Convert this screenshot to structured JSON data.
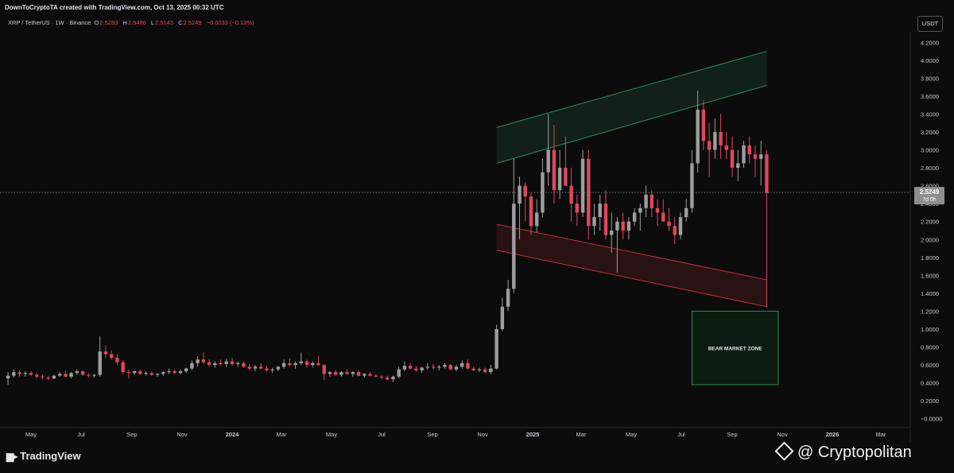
{
  "header": {
    "credit": "DownToCryptoTA created with TradingView.com, Oct 13, 2025 00:32 UTC"
  },
  "symbol": {
    "name": "XRP / TetherUS · 1W · Binance",
    "o_label": "O",
    "o": "2.5283",
    "h_label": "H",
    "h": "2.5486",
    "l_label": "L",
    "l": "2.5143",
    "c_label": "C",
    "c": "2.5249",
    "change": "−0.0033 (−0.13%)"
  },
  "currency_button": "USDT",
  "price_tag": {
    "price": "2.5249",
    "countdown": "7d 0h"
  },
  "annotation": {
    "bear_zone": "BEAR MARKET ZONE"
  },
  "footer": {
    "logo_text": "TradingView",
    "watermark": "@ Cryptopolitan"
  },
  "colors": {
    "up": "#9e9e9e",
    "down": "#e0475b",
    "green_channel": "#2e8b57",
    "red_channel": "#c0303c",
    "bg": "#0c0c0c"
  },
  "chart_data": {
    "type": "candlestick",
    "title": "",
    "ylim": [
      -0.1,
      4.3
    ],
    "y_ticks": [
      "4.2000",
      "4.0000",
      "3.8000",
      "3.6000",
      "3.4000",
      "3.2000",
      "3.0000",
      "2.8000",
      "2.6000",
      "2.4000",
      "2.2000",
      "2.0000",
      "1.8000",
      "1.6000",
      "1.4000",
      "1.2000",
      "1.0000",
      "0.8000",
      "0.6000",
      "0.4000",
      "0.2000",
      "−0.0000"
    ],
    "x_ticks": [
      "May",
      "Jul",
      "Sep",
      "Nov",
      "2024",
      "Mar",
      "May",
      "Jul",
      "Sep",
      "Nov",
      "2025",
      "Mar",
      "May",
      "Jul",
      "Sep",
      "Nov",
      "2026",
      "Mar"
    ],
    "x_range": [
      "2023-04-01",
      "2026-04-01"
    ],
    "x_tick_dates": [
      "2023-05-01",
      "2023-07-01",
      "2023-09-01",
      "2023-11-01",
      "2024-01-01",
      "2024-03-01",
      "2024-05-01",
      "2024-07-01",
      "2024-09-01",
      "2024-11-01",
      "2025-01-01",
      "2025-03-01",
      "2025-05-01",
      "2025-07-01",
      "2025-09-01",
      "2025-11-01",
      "2026-01-01",
      "2026-03-01"
    ],
    "first_candle_date": "2023-04-03",
    "candles": [
      [
        0.45,
        0.52,
        0.38,
        0.48
      ],
      [
        0.48,
        0.55,
        0.46,
        0.52
      ],
      [
        0.52,
        0.54,
        0.47,
        0.5
      ],
      [
        0.5,
        0.53,
        0.47,
        0.51
      ],
      [
        0.51,
        0.53,
        0.48,
        0.49
      ],
      [
        0.49,
        0.51,
        0.45,
        0.47
      ],
      [
        0.47,
        0.49,
        0.44,
        0.46
      ],
      [
        0.46,
        0.48,
        0.43,
        0.45
      ],
      [
        0.45,
        0.49,
        0.44,
        0.48
      ],
      [
        0.48,
        0.52,
        0.47,
        0.5
      ],
      [
        0.5,
        0.53,
        0.46,
        0.47
      ],
      [
        0.47,
        0.52,
        0.45,
        0.51
      ],
      [
        0.51,
        0.55,
        0.49,
        0.53
      ],
      [
        0.53,
        0.54,
        0.48,
        0.49
      ],
      [
        0.49,
        0.51,
        0.46,
        0.48
      ],
      [
        0.48,
        0.5,
        0.46,
        0.49
      ],
      [
        0.49,
        0.92,
        0.47,
        0.75
      ],
      [
        0.75,
        0.82,
        0.68,
        0.72
      ],
      [
        0.72,
        0.76,
        0.66,
        0.68
      ],
      [
        0.68,
        0.72,
        0.6,
        0.63
      ],
      [
        0.63,
        0.65,
        0.5,
        0.52
      ],
      [
        0.52,
        0.55,
        0.45,
        0.51
      ],
      [
        0.51,
        0.54,
        0.49,
        0.53
      ],
      [
        0.53,
        0.55,
        0.49,
        0.5
      ],
      [
        0.5,
        0.53,
        0.48,
        0.51
      ],
      [
        0.51,
        0.53,
        0.48,
        0.49
      ],
      [
        0.49,
        0.51,
        0.47,
        0.5
      ],
      [
        0.5,
        0.53,
        0.48,
        0.52
      ],
      [
        0.52,
        0.56,
        0.5,
        0.53
      ],
      [
        0.53,
        0.55,
        0.5,
        0.51
      ],
      [
        0.51,
        0.55,
        0.5,
        0.53
      ],
      [
        0.53,
        0.57,
        0.51,
        0.56
      ],
      [
        0.56,
        0.65,
        0.54,
        0.62
      ],
      [
        0.62,
        0.7,
        0.58,
        0.66
      ],
      [
        0.66,
        0.74,
        0.61,
        0.63
      ],
      [
        0.63,
        0.66,
        0.58,
        0.6
      ],
      [
        0.6,
        0.64,
        0.57,
        0.62
      ],
      [
        0.62,
        0.66,
        0.59,
        0.61
      ],
      [
        0.61,
        0.67,
        0.58,
        0.64
      ],
      [
        0.64,
        0.68,
        0.59,
        0.61
      ],
      [
        0.61,
        0.64,
        0.58,
        0.62
      ],
      [
        0.62,
        0.64,
        0.57,
        0.58
      ],
      [
        0.58,
        0.61,
        0.54,
        0.56
      ],
      [
        0.56,
        0.6,
        0.53,
        0.58
      ],
      [
        0.58,
        0.62,
        0.55,
        0.56
      ],
      [
        0.56,
        0.59,
        0.52,
        0.54
      ],
      [
        0.54,
        0.57,
        0.51,
        0.55
      ],
      [
        0.55,
        0.59,
        0.53,
        0.58
      ],
      [
        0.58,
        0.66,
        0.56,
        0.62
      ],
      [
        0.62,
        0.67,
        0.58,
        0.6
      ],
      [
        0.6,
        0.64,
        0.56,
        0.62
      ],
      [
        0.62,
        0.74,
        0.6,
        0.64
      ],
      [
        0.64,
        0.66,
        0.57,
        0.6
      ],
      [
        0.6,
        0.64,
        0.57,
        0.62
      ],
      [
        0.62,
        0.7,
        0.59,
        0.6
      ],
      [
        0.6,
        0.61,
        0.43,
        0.5
      ],
      [
        0.5,
        0.53,
        0.47,
        0.52
      ],
      [
        0.52,
        0.54,
        0.48,
        0.49
      ],
      [
        0.49,
        0.53,
        0.47,
        0.52
      ],
      [
        0.52,
        0.55,
        0.49,
        0.5
      ],
      [
        0.5,
        0.53,
        0.47,
        0.52
      ],
      [
        0.52,
        0.54,
        0.47,
        0.48
      ],
      [
        0.48,
        0.51,
        0.46,
        0.5
      ],
      [
        0.5,
        0.52,
        0.47,
        0.48
      ],
      [
        0.48,
        0.5,
        0.46,
        0.47
      ],
      [
        0.47,
        0.49,
        0.44,
        0.46
      ],
      [
        0.46,
        0.48,
        0.43,
        0.44
      ],
      [
        0.44,
        0.48,
        0.41,
        0.47
      ],
      [
        0.47,
        0.58,
        0.45,
        0.55
      ],
      [
        0.55,
        0.64,
        0.53,
        0.59
      ],
      [
        0.59,
        0.62,
        0.55,
        0.56
      ],
      [
        0.56,
        0.59,
        0.52,
        0.54
      ],
      [
        0.54,
        0.58,
        0.51,
        0.57
      ],
      [
        0.57,
        0.62,
        0.55,
        0.58
      ],
      [
        0.58,
        0.61,
        0.55,
        0.57
      ],
      [
        0.57,
        0.6,
        0.54,
        0.58
      ],
      [
        0.58,
        0.62,
        0.56,
        0.6
      ],
      [
        0.6,
        0.61,
        0.54,
        0.55
      ],
      [
        0.55,
        0.6,
        0.53,
        0.58
      ],
      [
        0.58,
        0.65,
        0.56,
        0.62
      ],
      [
        0.62,
        0.66,
        0.55,
        0.56
      ],
      [
        0.56,
        0.58,
        0.53,
        0.54
      ],
      [
        0.54,
        0.57,
        0.52,
        0.55
      ],
      [
        0.55,
        0.57,
        0.51,
        0.52
      ],
      [
        0.52,
        0.6,
        0.5,
        0.56
      ],
      [
        0.56,
        1.05,
        0.55,
        1.0
      ],
      [
        1.0,
        1.35,
        0.98,
        1.25
      ],
      [
        1.25,
        1.55,
        1.2,
        1.45
      ],
      [
        1.45,
        2.9,
        1.4,
        2.4
      ],
      [
        2.4,
        2.7,
        2.0,
        2.6
      ],
      [
        2.6,
        2.64,
        2.2,
        2.48
      ],
      [
        2.48,
        2.52,
        2.05,
        2.15
      ],
      [
        2.15,
        2.45,
        2.08,
        2.3
      ],
      [
        2.3,
        2.9,
        2.25,
        2.75
      ],
      [
        2.75,
        3.4,
        2.6,
        3.0
      ],
      [
        3.0,
        3.28,
        2.4,
        2.55
      ],
      [
        2.55,
        3.0,
        2.45,
        2.8
      ],
      [
        2.8,
        3.15,
        2.6,
        2.6
      ],
      [
        2.6,
        2.8,
        2.2,
        2.4
      ],
      [
        2.4,
        2.5,
        2.15,
        2.3
      ],
      [
        2.3,
        3.0,
        2.25,
        2.9
      ],
      [
        2.9,
        3.0,
        2.0,
        2.15
      ],
      [
        2.15,
        2.4,
        2.05,
        2.25
      ],
      [
        2.25,
        2.5,
        2.1,
        2.4
      ],
      [
        2.4,
        2.55,
        2.0,
        2.05
      ],
      [
        2.05,
        2.3,
        1.85,
        2.1
      ],
      [
        2.1,
        2.25,
        1.63,
        2.2
      ],
      [
        2.2,
        2.3,
        2.0,
        2.1
      ],
      [
        2.1,
        2.25,
        2.0,
        2.2
      ],
      [
        2.2,
        2.35,
        2.15,
        2.3
      ],
      [
        2.3,
        2.4,
        2.1,
        2.35
      ],
      [
        2.35,
        2.6,
        2.25,
        2.5
      ],
      [
        2.5,
        2.55,
        2.25,
        2.35
      ],
      [
        2.35,
        2.45,
        2.15,
        2.3
      ],
      [
        2.3,
        2.45,
        2.2,
        2.2
      ],
      [
        2.2,
        2.35,
        2.1,
        2.15
      ],
      [
        2.15,
        2.25,
        1.95,
        2.05
      ],
      [
        2.05,
        2.3,
        2.0,
        2.25
      ],
      [
        2.25,
        2.45,
        2.2,
        2.35
      ],
      [
        2.35,
        3.0,
        2.3,
        2.85
      ],
      [
        2.85,
        3.66,
        2.75,
        3.45
      ],
      [
        3.45,
        3.55,
        3.0,
        3.1
      ],
      [
        3.1,
        3.3,
        2.7,
        3.0
      ],
      [
        3.0,
        3.35,
        2.9,
        3.2
      ],
      [
        3.2,
        3.4,
        2.9,
        3.05
      ],
      [
        3.05,
        3.2,
        2.9,
        3.0
      ],
      [
        3.0,
        3.15,
        2.7,
        2.8
      ],
      [
        2.8,
        3.0,
        2.65,
        2.85
      ],
      [
        2.85,
        3.1,
        2.8,
        3.05
      ],
      [
        3.05,
        3.15,
        2.85,
        2.95
      ],
      [
        2.95,
        3.05,
        2.7,
        2.9
      ],
      [
        2.9,
        3.1,
        2.6,
        2.95
      ],
      [
        2.95,
        3.0,
        1.25,
        2.52
      ]
    ],
    "last_price": 2.5249,
    "green_channel": {
      "upper": [
        [
          "2024-11-18",
          3.25
        ],
        [
          "2025-10-13",
          4.1
        ]
      ],
      "lower": [
        [
          "2024-11-18",
          2.85
        ],
        [
          "2025-10-13",
          3.72
        ]
      ]
    },
    "red_channel": {
      "upper": [
        [
          "2024-11-18",
          2.17
        ],
        [
          "2025-10-13",
          1.55
        ]
      ],
      "lower": [
        [
          "2024-11-18",
          1.88
        ],
        [
          "2025-10-13",
          1.25
        ]
      ]
    },
    "bear_zone": {
      "x": [
        "2025-07-14",
        "2025-10-27"
      ],
      "y": [
        0.38,
        1.2
      ]
    }
  }
}
